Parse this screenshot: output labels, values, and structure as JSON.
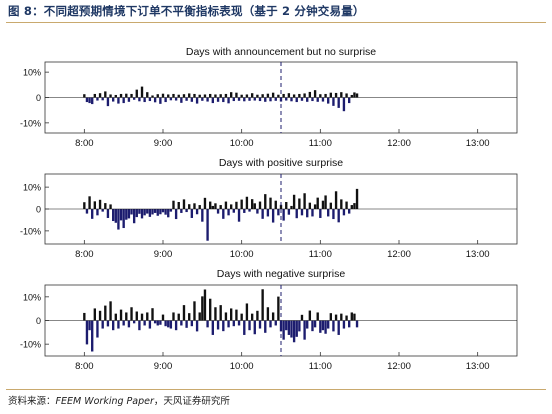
{
  "figure": {
    "title": "图 8：不同超预期情境下订单不平衡指标表现（基于 2 分钟交易量）",
    "source_prefix": "资料来源：",
    "source_pub": "FEEM Working Paper",
    "source_suffix": "，天风证券研究所",
    "colors": {
      "rule": "#c9a96e",
      "title": "#1f3864",
      "negative_bar": "#1c1c6e",
      "other_bar": "#111111",
      "dashed_line": "#1c1c6e"
    }
  },
  "chart_data": [
    {
      "type": "bar",
      "title": "Days with announcement but no surprise",
      "x_ticks": [
        "8:00",
        "9:00",
        "10:00",
        "11:00",
        "12:00",
        "13:00"
      ],
      "y_ticks": [
        "10%",
        "0",
        "-10%"
      ],
      "ylim": [
        -0.14,
        0.14
      ],
      "xlim": [
        "7:30",
        "13:30"
      ],
      "announcement_time": "10:30",
      "grid": false,
      "bar_interval_minutes": 2,
      "x_start": "8:00",
      "values": [
        0.013,
        -0.018,
        -0.022,
        -0.026,
        0.014,
        -0.012,
        0.017,
        -0.011,
        0.024,
        -0.034,
        0.012,
        -0.016,
        0.01,
        -0.024,
        0.014,
        -0.022,
        0.015,
        -0.017,
        0.014,
        -0.009,
        0.031,
        -0.015,
        0.043,
        -0.018,
        0.021,
        -0.014,
        0.008,
        -0.019,
        0.013,
        -0.025,
        0.015,
        -0.018,
        0.012,
        -0.011,
        0.014,
        -0.012,
        0.011,
        -0.021,
        0.013,
        -0.013,
        0.016,
        -0.017,
        0.014,
        -0.024,
        0.011,
        -0.013,
        0.012,
        -0.016,
        0.014,
        -0.022,
        0.012,
        -0.017,
        0.013,
        -0.018,
        0.014,
        -0.023,
        0.021,
        -0.014,
        0.019,
        -0.013,
        0.011,
        -0.015,
        0.012,
        -0.013,
        0.017,
        -0.012,
        0.011,
        -0.014,
        0.013,
        -0.017,
        0.015,
        -0.015,
        0.019,
        -0.013,
        0.011,
        -0.016,
        0.014,
        -0.012,
        0.017,
        -0.015,
        0.012,
        -0.018,
        0.014,
        -0.013,
        0.016,
        -0.017,
        0.022,
        -0.014,
        0.029,
        -0.017,
        0.013,
        -0.016,
        0.014,
        -0.024,
        0.019,
        -0.033,
        0.018,
        -0.041,
        0.021,
        -0.054,
        0.016,
        -0.022,
        0.01,
        0.02,
        0.016
      ]
    },
    {
      "type": "bar",
      "title": "Days with positive surprise",
      "x_ticks": [
        "8:00",
        "9:00",
        "10:00",
        "11:00",
        "12:00",
        "13:00"
      ],
      "y_ticks": [
        "10%",
        "0",
        "-10%"
      ],
      "ylim": [
        -0.16,
        0.16
      ],
      "xlim": [
        "7:30",
        "13:30"
      ],
      "announcement_time": "10:30",
      "grid": false,
      "bar_interval_minutes": 2,
      "x_start": "8:00",
      "values": [
        0.031,
        -0.021,
        0.058,
        -0.045,
        0.035,
        -0.029,
        0.042,
        -0.012,
        0.027,
        -0.041,
        0.021,
        -0.055,
        -0.063,
        -0.094,
        -0.052,
        -0.087,
        -0.049,
        -0.043,
        -0.025,
        -0.065,
        -0.037,
        -0.022,
        -0.043,
        -0.029,
        -0.021,
        -0.036,
        -0.025,
        -0.018,
        -0.031,
        -0.024,
        -0.015,
        -0.026,
        -0.038,
        -0.012,
        0.038,
        -0.046,
        0.032,
        -0.018,
        0.044,
        -0.014,
        0.022,
        -0.041,
        0.026,
        -0.024,
        0.018,
        -0.058,
        0.051,
        -0.145,
        0.034,
        0.014,
        0.026,
        -0.021,
        0.018,
        -0.045,
        0.034,
        -0.029,
        0.021,
        -0.017,
        0.033,
        -0.058,
        0.043,
        -0.018,
        0.056,
        -0.012,
        0.045,
        0.026,
        -0.021,
        0.034,
        -0.045,
        0.068,
        -0.034,
        0.052,
        -0.062,
        0.038,
        -0.029,
        0.019,
        -0.053,
        0.032,
        -0.026,
        0.014,
        0.065,
        -0.042,
        0.048,
        -0.029,
        0.072,
        -0.038,
        0.029,
        -0.034,
        0.021,
        0.052,
        -0.041,
        0.038,
        0.062,
        -0.034,
        0.029,
        -0.046,
        0.081,
        -0.061,
        0.044,
        -0.029,
        0.034,
        -0.021,
        0.018,
        0.027,
        0.092
      ]
    },
    {
      "type": "bar",
      "title": "Days with negative surprise",
      "x_ticks": [
        "8:00",
        "9:00",
        "10:00",
        "11:00",
        "12:00",
        "13:00"
      ],
      "y_ticks": [
        "10%",
        "0",
        "-10%"
      ],
      "ylim": [
        -0.15,
        0.15
      ],
      "xlim": [
        "7:30",
        "13:30"
      ],
      "announcement_time": "10:30",
      "grid": false,
      "bar_interval_minutes": 2,
      "x_start": "8:00",
      "values": [
        0.032,
        -0.101,
        -0.041,
        -0.131,
        0.051,
        -0.072,
        0.041,
        -0.034,
        0.063,
        -0.025,
        0.081,
        -0.041,
        0.029,
        -0.034,
        0.046,
        -0.021,
        0.034,
        -0.029,
        0.056,
        -0.012,
        0.038,
        -0.041,
        0.029,
        -0.021,
        0.034,
        -0.034,
        0.052,
        -0.012,
        -0.021,
        -0.018,
        0.025,
        -0.024,
        -0.029,
        -0.034,
        0.034,
        -0.041,
        0.029,
        -0.021,
        0.065,
        -0.031,
        0.031,
        -0.024,
        0.081,
        -0.046,
        0.034,
        0.102,
        0.131,
        -0.029,
        0.092,
        -0.061,
        0.056,
        -0.038,
        0.065,
        -0.045,
        0.034,
        -0.029,
        0.051,
        -0.024,
        0.046,
        -0.021,
        0.029,
        -0.061,
        0.072,
        -0.041,
        0.029,
        -0.058,
        0.041,
        -0.034,
        0.132,
        -0.052,
        0.056,
        -0.029,
        0.034,
        -0.021,
        0.101,
        -0.046,
        -0.081,
        -0.041,
        -0.061,
        -0.072,
        -0.092,
        -0.069,
        -0.046,
        0.024,
        -0.081,
        -0.034,
        0.042,
        -0.045,
        -0.029,
        0.034,
        -0.052,
        -0.041,
        -0.056,
        -0.034,
        0.031,
        -0.046,
        0.025,
        -0.061,
        0.029,
        -0.034,
        0.021,
        -0.029,
        0.034,
        0.029,
        -0.029
      ]
    }
  ]
}
